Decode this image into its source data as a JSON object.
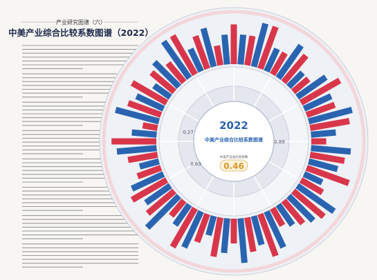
{
  "header": {
    "series_label": "产业研究图谱（六）",
    "title": "中美产业综合比较系数图谱（2022）"
  },
  "center": {
    "year": "2022",
    "title": "中美产业综合比较系数图谱",
    "overall_label": "中美产业总比较系数",
    "overall_value": 0.46
  },
  "sector_values": [
    0.27,
    0.89,
    0.63
  ],
  "outer_ring": {
    "series": [
      {
        "color": "#d8364a",
        "values": [
          0.8,
          0.6,
          0.9,
          0.5,
          0.7,
          0.4,
          0.9,
          0.6,
          0.8,
          0.3,
          0.7,
          0.9,
          0.5,
          0.8,
          0.6,
          0.4,
          0.9,
          0.7,
          0.5,
          0.8,
          0.6,
          0.9,
          0.4,
          0.7,
          0.8,
          0.5,
          0.6,
          0.9,
          0.3,
          0.7,
          0.8,
          0.6,
          0.5,
          0.9,
          0.7,
          0.4
        ]
      },
      {
        "color": "#2a64b0",
        "values": [
          0.6,
          0.9,
          0.5,
          0.8,
          0.4,
          0.7,
          0.6,
          0.9,
          0.5,
          0.8,
          0.6,
          0.4,
          0.9,
          0.7,
          0.5,
          0.8,
          0.6,
          0.9,
          0.7,
          0.4,
          0.8,
          0.5,
          0.9,
          0.6,
          0.7,
          0.4,
          0.8,
          0.5,
          0.9,
          0.6,
          0.4,
          0.7,
          0.9,
          0.5,
          0.8,
          0.6
        ]
      }
    ]
  }
}
